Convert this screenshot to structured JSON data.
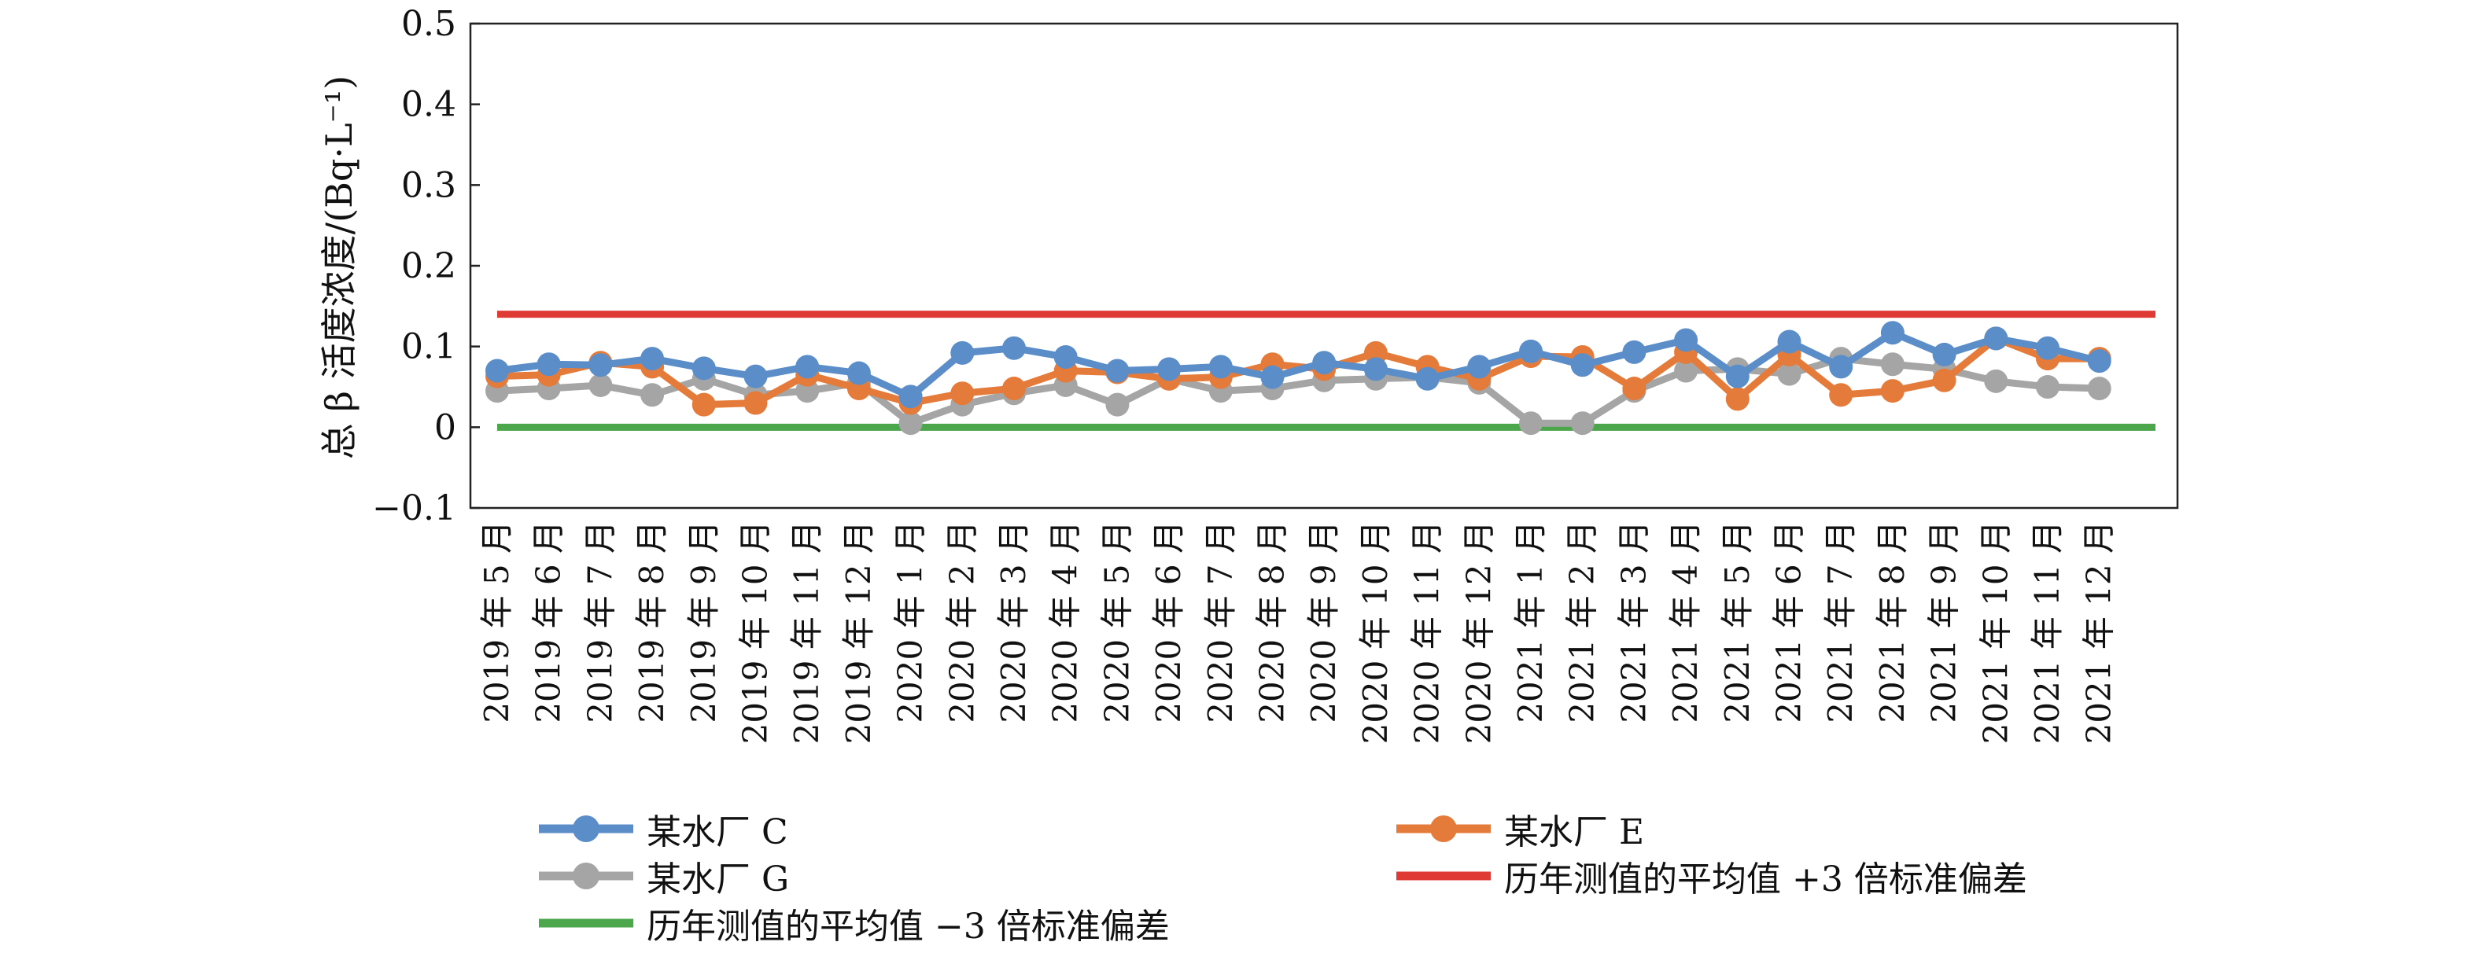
{
  "chart_data": {
    "type": "line",
    "ylabel": "总 β 活度浓度/(Bq·L⁻¹)",
    "ylim": [
      -0.1,
      0.5
    ],
    "yticks": [
      "−0.1",
      "0",
      "0.1",
      "0.2",
      "0.3",
      "0.4",
      "0.5"
    ],
    "categories": [
      "2019 年 5 月",
      "2019 年 6 月",
      "2019 年 7 月",
      "2019 年 8 月",
      "2019 年 9 月",
      "2019 年 10 月",
      "2019 年 11 月",
      "2019 年 12 月",
      "2020 年 1 月",
      "2020 年 2 月",
      "2020 年 3 月",
      "2020 年 4 月",
      "2020 年 5 月",
      "2020 年 6 月",
      "2020 年 7 月",
      "2020 年 8 月",
      "2020 年 9 月",
      "2020 年 10 月",
      "2020 年 11 月",
      "2020 年 12 月",
      "2021 年 1 月",
      "2021 年 2 月",
      "2021 年 3 月",
      "2021 年 4 月",
      "2021 年 5 月",
      "2021 年 6 月",
      "2021 年 7 月",
      "2021 年 8 月",
      "2021 年 9 月",
      "2021 年 10 月",
      "2021 年 11 月",
      "2021 年 12 月"
    ],
    "series": [
      {
        "name": "某水厂 C",
        "color": "#5B8EC9",
        "marker": true,
        "values": [
          0.07,
          0.078,
          0.077,
          0.085,
          0.073,
          0.063,
          0.075,
          0.067,
          0.038,
          0.092,
          0.098,
          0.087,
          0.07,
          0.072,
          0.075,
          0.062,
          0.08,
          0.072,
          0.06,
          0.075,
          0.094,
          0.077,
          0.093,
          0.108,
          0.063,
          0.106,
          0.075,
          0.117,
          0.09,
          0.11,
          0.098,
          0.082
        ]
      },
      {
        "name": "某水厂 E",
        "color": "#E57B3A",
        "marker": true,
        "values": [
          0.063,
          0.065,
          0.08,
          0.075,
          0.028,
          0.03,
          0.065,
          0.048,
          0.03,
          0.042,
          0.048,
          0.07,
          0.068,
          0.06,
          0.062,
          0.078,
          0.072,
          0.092,
          0.075,
          0.06,
          0.088,
          0.087,
          0.048,
          0.093,
          0.035,
          0.09,
          0.04,
          0.045,
          0.058,
          0.11,
          0.085,
          0.085
        ]
      },
      {
        "name": "某水厂 G",
        "color": "#A5A5A5",
        "marker": true,
        "values": [
          0.045,
          0.048,
          0.052,
          0.04,
          0.06,
          0.04,
          0.045,
          0.055,
          0.005,
          0.028,
          0.042,
          0.052,
          0.028,
          0.06,
          0.045,
          0.048,
          0.058,
          0.06,
          0.062,
          0.055,
          0.005,
          0.005,
          0.045,
          0.07,
          0.072,
          0.066,
          0.085,
          0.078,
          0.072,
          0.057,
          0.05,
          0.048
        ]
      },
      {
        "name": "历年测值的平均值 +3 倍标准偏差",
        "color": "#E03A35",
        "marker": false,
        "constant": 0.14
      },
      {
        "name": "历年测值的平均值 −3 倍标准偏差",
        "color": "#4CA64C",
        "marker": false,
        "constant": 0.0
      }
    ],
    "legend": [
      {
        "label": "某水厂 C",
        "color": "#5B8EC9",
        "marker": true
      },
      {
        "label": "某水厂 E",
        "color": "#E57B3A",
        "marker": true
      },
      {
        "label": "某水厂 G",
        "color": "#A5A5A5",
        "marker": true
      },
      {
        "label": "历年测值的平均值 +3 倍标准偏差",
        "color": "#E03A35",
        "marker": false
      },
      {
        "label": "历年测值的平均值 −3 倍标准偏差",
        "color": "#4CA64C",
        "marker": false
      }
    ]
  }
}
